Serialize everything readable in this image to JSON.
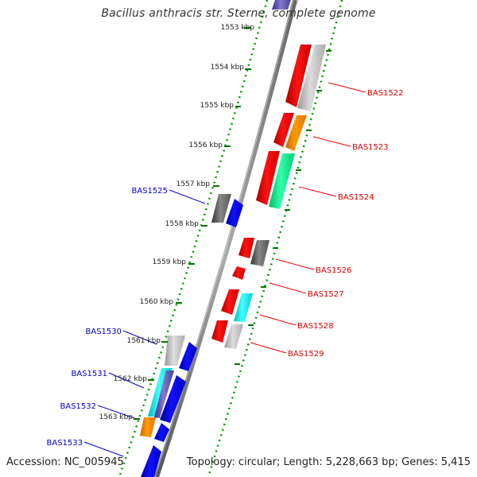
{
  "header": {
    "title": "Bacillus anthracis str. Sterne, complete genome"
  },
  "footer": {
    "accession": "Accession: NC_005945",
    "topology": "Topology: circular; Length: 5,228,663 bp; Genes: 5,415"
  },
  "scale": {
    "ticks": [
      "1553 kbp",
      "1554 kbp",
      "1555 kbp",
      "1556 kbp",
      "1557 kbp",
      "1558 kbp",
      "1559 kbp",
      "1560 kbp",
      "1561 kbp",
      "1562 kbp",
      "1563 kbp"
    ]
  },
  "colors": {
    "red": "#ff0000",
    "blue": "#0000ee",
    "orange": "#ff8c00",
    "green": "#00ee88",
    "cyan": "#00eeee",
    "gray": "#bbbbbb",
    "darkgray": "#666666",
    "purple": "#6655aa",
    "labelRight": "#dd0000",
    "labelLeft": "#0000cc",
    "tick": "#007700"
  },
  "genes": {
    "right": [
      {
        "label": "BAS1522",
        "color": "red"
      },
      {
        "label": "BAS1523",
        "color": "red"
      },
      {
        "label": "BAS1524",
        "color": "red"
      },
      {
        "label": "BAS1526",
        "color": "red"
      },
      {
        "label": "BAS1527",
        "color": "red"
      },
      {
        "label": "BAS1528",
        "color": "red"
      },
      {
        "label": "BAS1529",
        "color": "red"
      }
    ],
    "left": [
      {
        "label": "BAS1525",
        "color": "blue"
      },
      {
        "label": "BAS1530",
        "color": "blue"
      },
      {
        "label": "BAS1531",
        "color": "blue"
      },
      {
        "label": "BAS1532",
        "color": "blue"
      },
      {
        "label": "BAS1533",
        "color": "blue"
      }
    ]
  }
}
